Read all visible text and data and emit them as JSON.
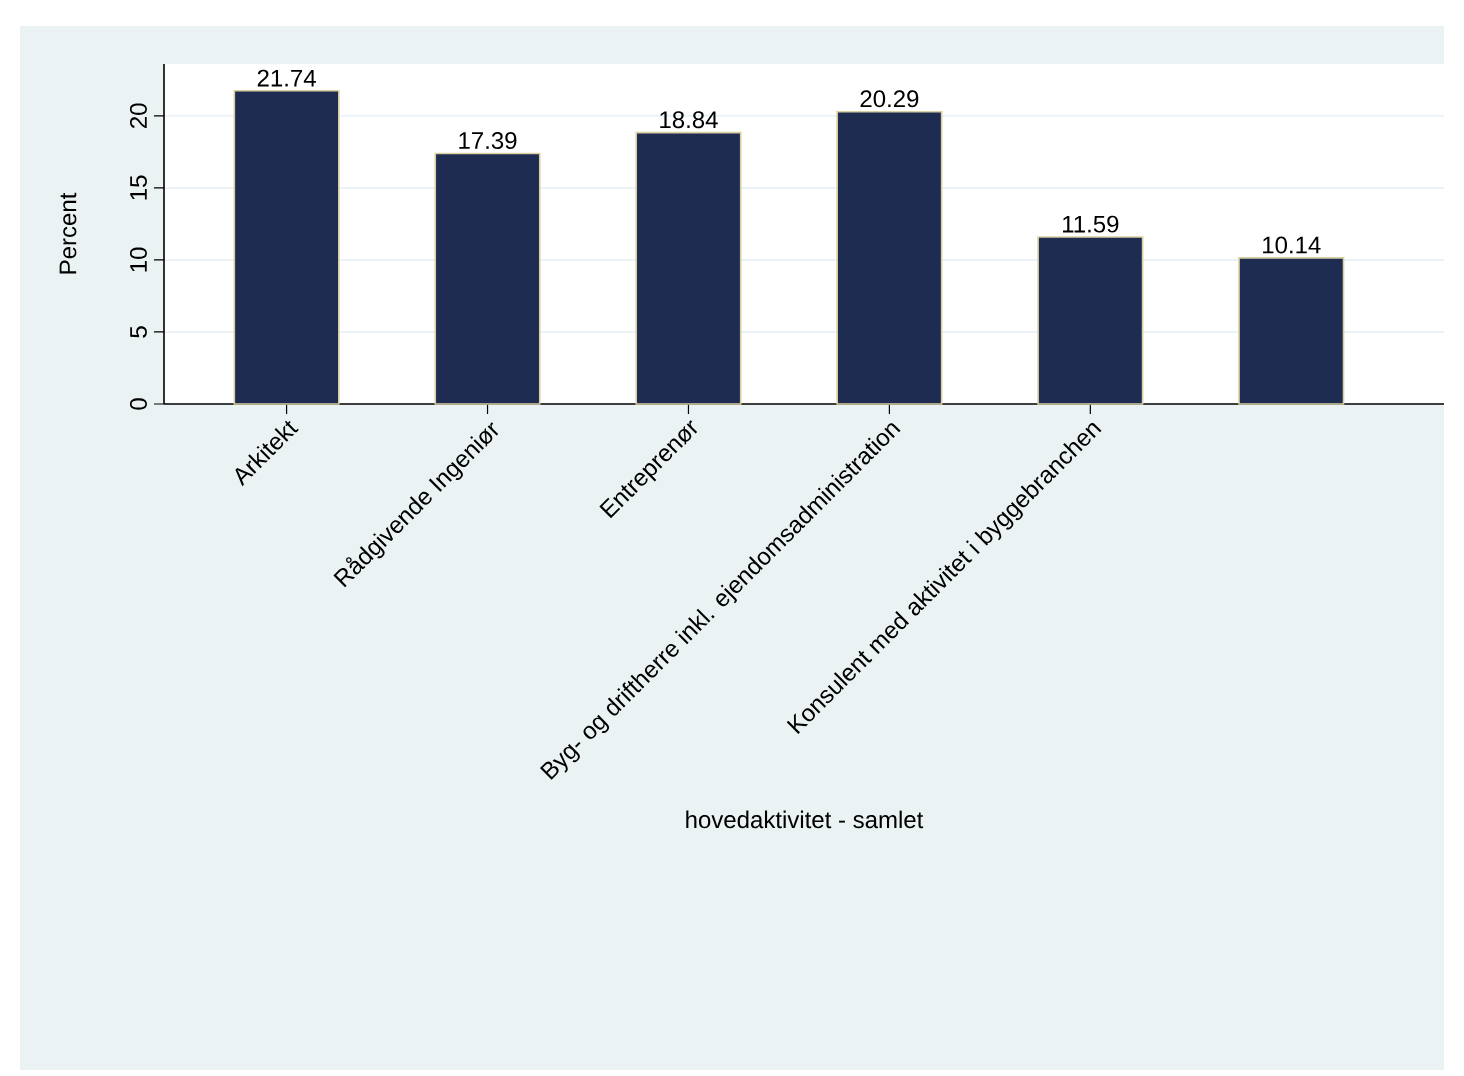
{
  "chart_data": {
    "type": "bar",
    "xlabel": "hovedaktivitet - samlet",
    "ylabel": "Percent",
    "categories": [
      "Arkitekt",
      "Rådgivende Ingeniør",
      "Entreprenør",
      "Byg- og driftherre inkl. ejendomsadministration",
      "Konsulent med aktivitet i byggebranchen",
      null
    ],
    "values": [
      21.74,
      17.39,
      18.84,
      20.29,
      11.59,
      10.14
    ],
    "color": "#1f2c51",
    "ylim": [
      0,
      23.6
    ],
    "yticks": [
      0,
      5,
      10,
      15,
      20
    ],
    "grid": "y",
    "data_labels": true
  }
}
